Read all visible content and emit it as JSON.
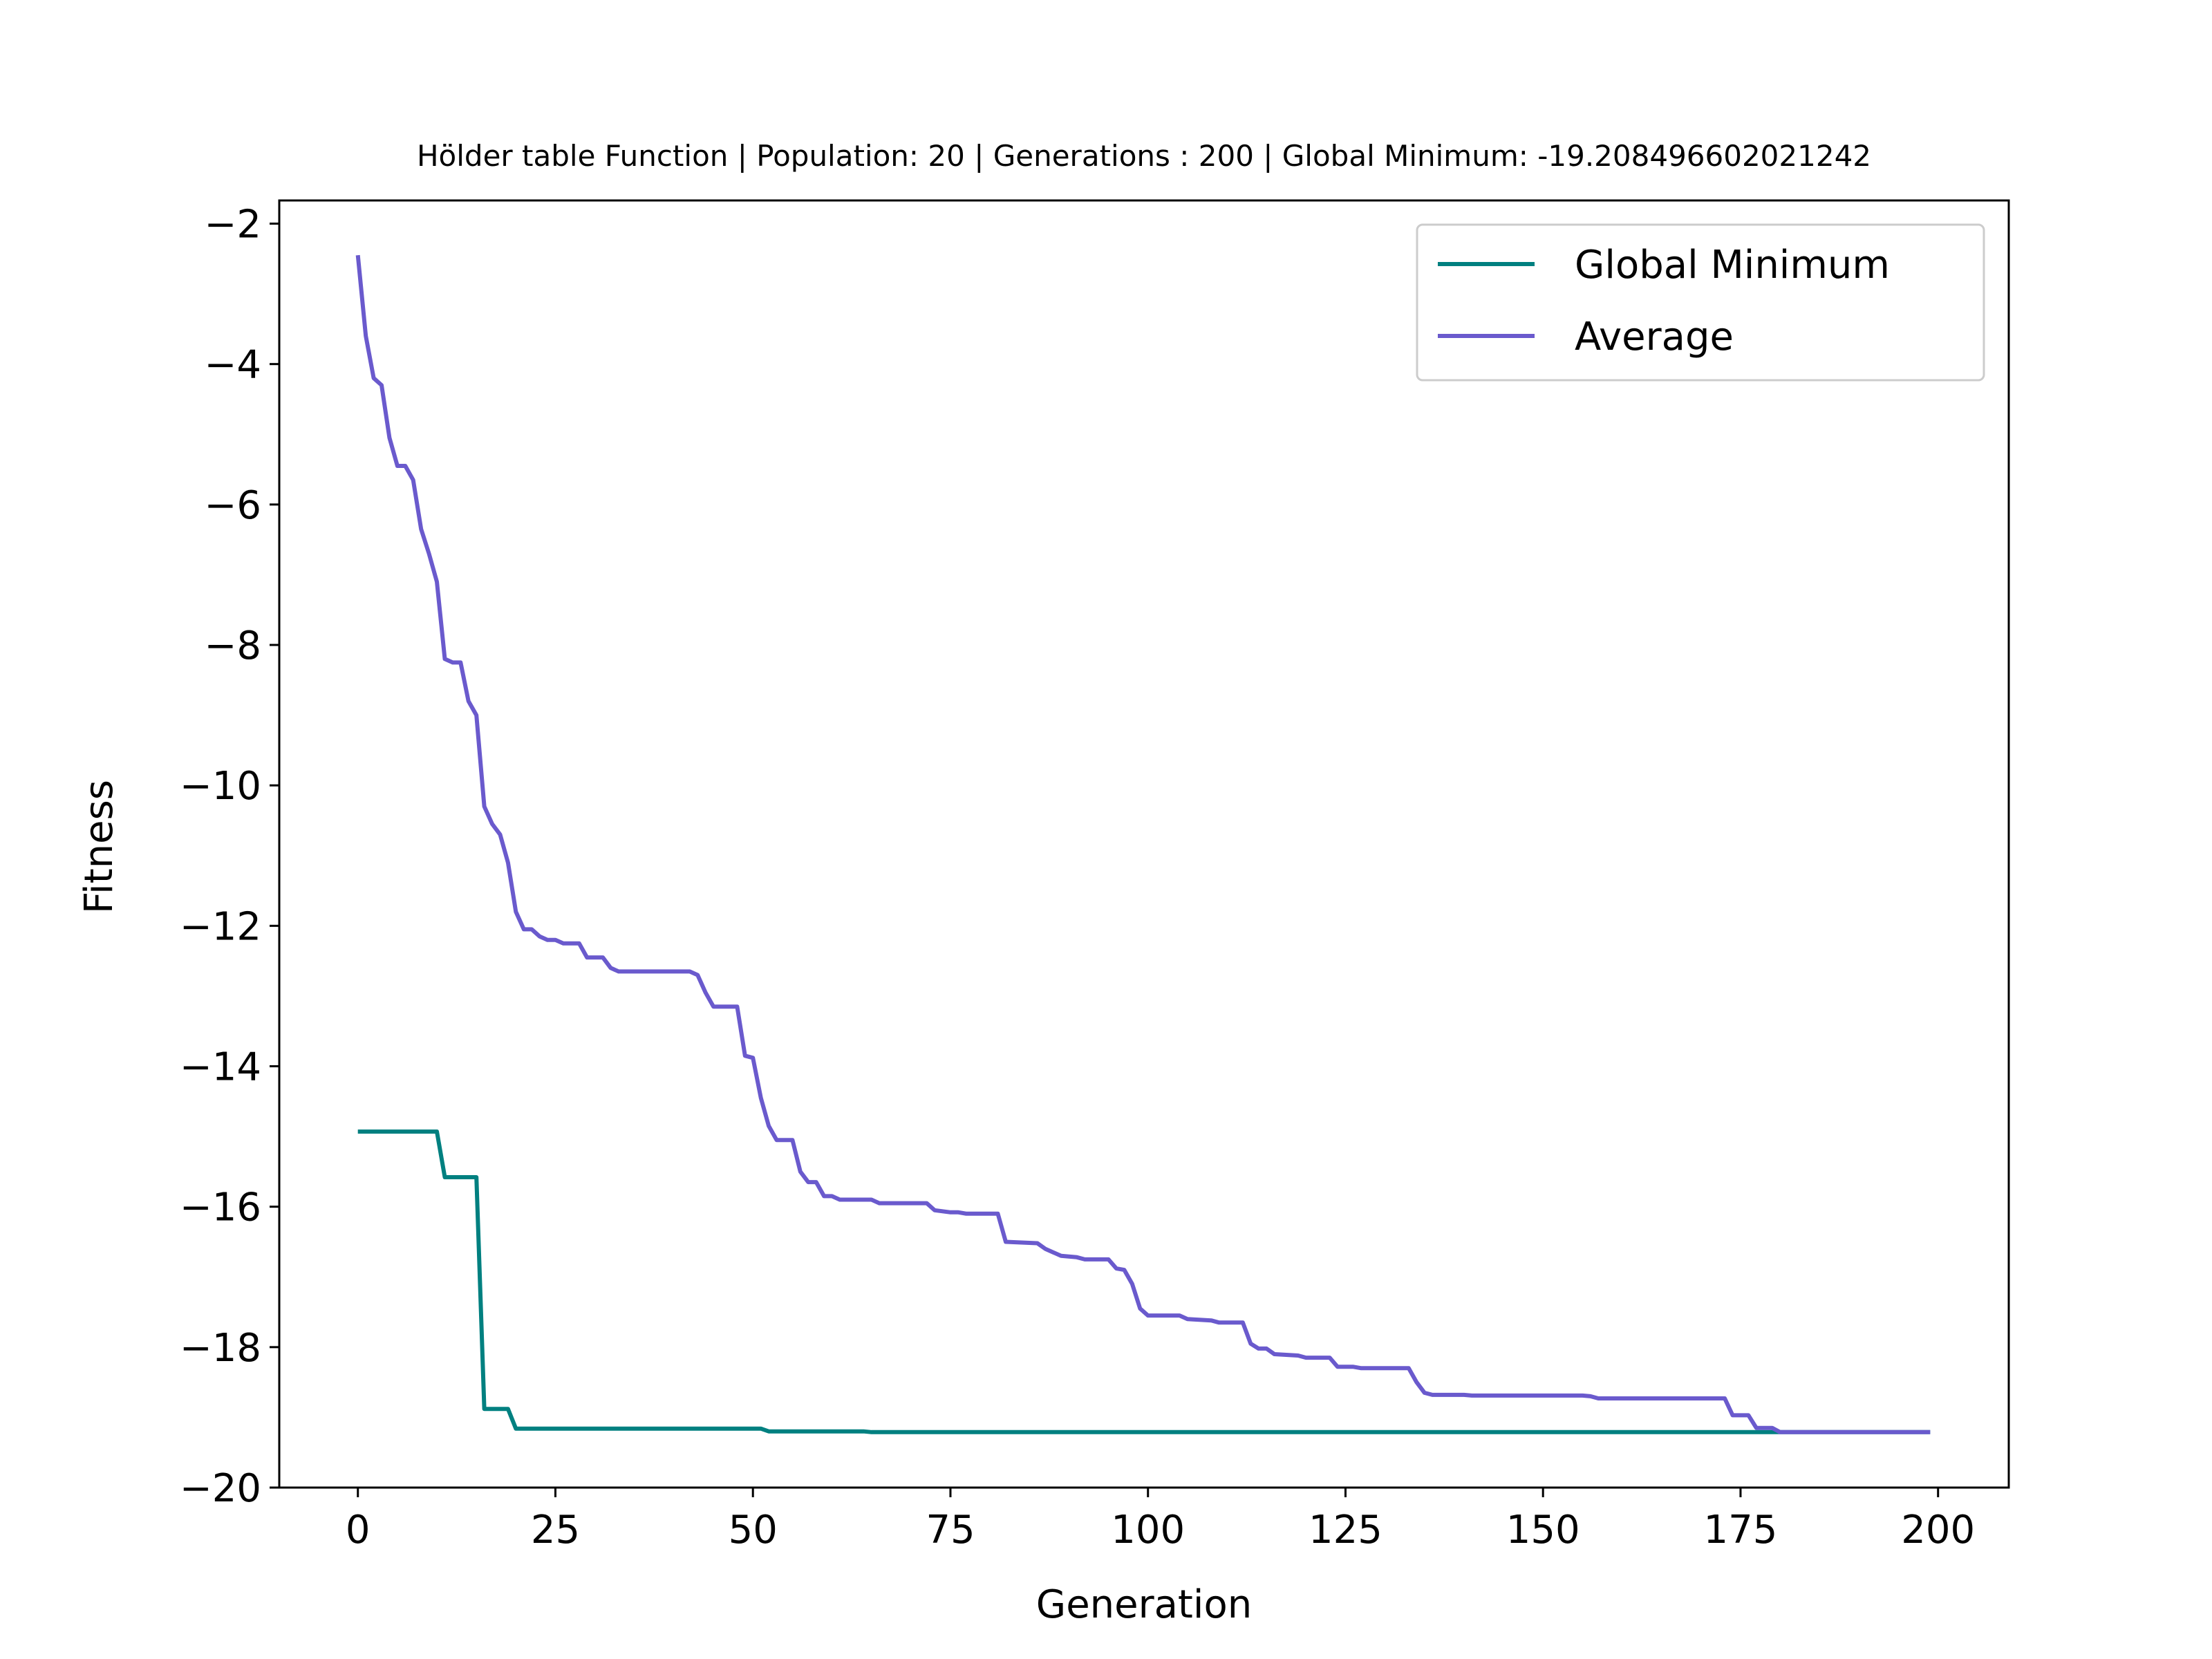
{
  "chart_data": {
    "type": "line",
    "title": "Hölder table Function | Population: 20 | Generations : 200 | Global Minimum: -19.208496602021242",
    "xlabel": "Generation",
    "ylabel": "Fitness",
    "xlim": [
      -9.95,
      208.95
    ],
    "ylim": [
      -20,
      -1.67
    ],
    "xticks": [
      0,
      25,
      50,
      75,
      100,
      125,
      150,
      175,
      200
    ],
    "yticks": [
      -20,
      -18,
      -16,
      -14,
      -12,
      -10,
      -8,
      -6,
      -4,
      -2
    ],
    "grid": false,
    "legend_position": "upper right",
    "series": [
      {
        "name": "Global Minimum",
        "color": "#008080",
        "points": [
          [
            0,
            -14.93
          ],
          [
            10,
            -14.93
          ],
          [
            11,
            -15.58
          ],
          [
            15,
            -15.58
          ],
          [
            16,
            -18.88
          ],
          [
            19,
            -18.88
          ],
          [
            20,
            -19.16
          ],
          [
            51,
            -19.16
          ],
          [
            52,
            -19.2
          ],
          [
            64,
            -19.2
          ],
          [
            65,
            -19.21
          ],
          [
            199,
            -19.21
          ]
        ]
      },
      {
        "name": "Average",
        "color": "#6a5acd",
        "points": [
          [
            0,
            -2.45
          ],
          [
            1,
            -3.6
          ],
          [
            2,
            -4.2
          ],
          [
            3,
            -4.3
          ],
          [
            4,
            -5.05
          ],
          [
            5,
            -5.45
          ],
          [
            6,
            -5.45
          ],
          [
            7,
            -5.65
          ],
          [
            8,
            -6.35
          ],
          [
            9,
            -6.7
          ],
          [
            10,
            -7.1
          ],
          [
            11,
            -8.2
          ],
          [
            12,
            -8.25
          ],
          [
            13,
            -8.25
          ],
          [
            14,
            -8.8
          ],
          [
            15,
            -9.0
          ],
          [
            16,
            -10.3
          ],
          [
            17,
            -10.55
          ],
          [
            18,
            -10.7
          ],
          [
            19,
            -11.1
          ],
          [
            20,
            -11.8
          ],
          [
            21,
            -12.05
          ],
          [
            22,
            -12.05
          ],
          [
            23,
            -12.15
          ],
          [
            24,
            -12.2
          ],
          [
            25,
            -12.2
          ],
          [
            26,
            -12.25
          ],
          [
            27,
            -12.25
          ],
          [
            28,
            -12.25
          ],
          [
            29,
            -12.45
          ],
          [
            30,
            -12.45
          ],
          [
            31,
            -12.45
          ],
          [
            32,
            -12.6
          ],
          [
            33,
            -12.65
          ],
          [
            34,
            -12.65
          ],
          [
            42,
            -12.65
          ],
          [
            43,
            -12.7
          ],
          [
            44,
            -12.95
          ],
          [
            45,
            -13.15
          ],
          [
            48,
            -13.15
          ],
          [
            49,
            -13.85
          ],
          [
            50,
            -13.88
          ],
          [
            51,
            -14.45
          ],
          [
            52,
            -14.85
          ],
          [
            53,
            -15.05
          ],
          [
            55,
            -15.05
          ],
          [
            56,
            -15.5
          ],
          [
            57,
            -15.65
          ],
          [
            58,
            -15.65
          ],
          [
            59,
            -15.85
          ],
          [
            60,
            -15.85
          ],
          [
            61,
            -15.9
          ],
          [
            65,
            -15.9
          ],
          [
            66,
            -15.95
          ],
          [
            72,
            -15.95
          ],
          [
            73,
            -16.05
          ],
          [
            75,
            -16.08
          ],
          [
            76,
            -16.08
          ],
          [
            77,
            -16.1
          ],
          [
            81,
            -16.1
          ],
          [
            82,
            -16.5
          ],
          [
            86,
            -16.52
          ],
          [
            87,
            -16.6
          ],
          [
            88,
            -16.65
          ],
          [
            89,
            -16.7
          ],
          [
            91,
            -16.72
          ],
          [
            92,
            -16.75
          ],
          [
            95,
            -16.75
          ],
          [
            96,
            -16.88
          ],
          [
            97,
            -16.9
          ],
          [
            98,
            -17.1
          ],
          [
            99,
            -17.45
          ],
          [
            100,
            -17.55
          ],
          [
            104,
            -17.55
          ],
          [
            105,
            -17.6
          ],
          [
            108,
            -17.62
          ],
          [
            109,
            -17.65
          ],
          [
            112,
            -17.65
          ],
          [
            113,
            -17.95
          ],
          [
            114,
            -18.02
          ],
          [
            115,
            -18.02
          ],
          [
            116,
            -18.1
          ],
          [
            119,
            -18.12
          ],
          [
            120,
            -18.15
          ],
          [
            123,
            -18.15
          ],
          [
            124,
            -18.28
          ],
          [
            126,
            -18.28
          ],
          [
            127,
            -18.3
          ],
          [
            133,
            -18.3
          ],
          [
            134,
            -18.5
          ],
          [
            135,
            -18.65
          ],
          [
            136,
            -18.68
          ],
          [
            140,
            -18.68
          ],
          [
            141,
            -18.69
          ],
          [
            155,
            -18.69
          ],
          [
            156,
            -18.7
          ],
          [
            157,
            -18.73
          ],
          [
            173,
            -18.73
          ],
          [
            174,
            -18.97
          ],
          [
            176,
            -18.97
          ],
          [
            177,
            -19.15
          ],
          [
            179,
            -19.15
          ],
          [
            180,
            -19.21
          ],
          [
            199,
            -19.21
          ]
        ]
      }
    ]
  }
}
